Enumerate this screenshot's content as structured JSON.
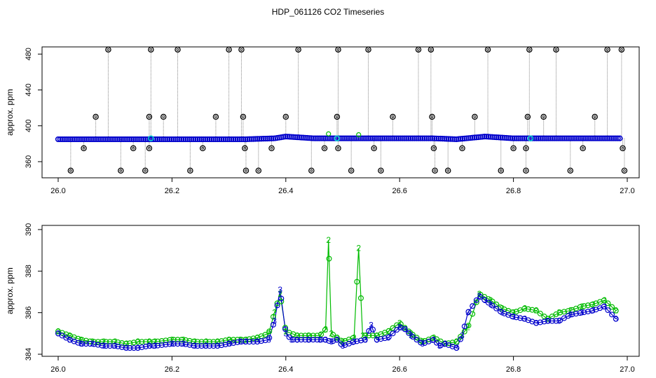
{
  "title": "HDP_061126  CO2 Timeseries",
  "colors": {
    "raw_points": "#000000",
    "raw_lines": "#888888",
    "smooth": "#0000cc",
    "cyan": "#00cccc",
    "green": "#00bb00"
  },
  "chart_data": [
    {
      "type": "scatter",
      "title": "",
      "xlabel": "",
      "ylabel": "approx. ppm",
      "xlim": [
        26.0,
        27.0
      ],
      "ylim": [
        342,
        488
      ],
      "x_ticks": [
        "26.0",
        "26.2",
        "26.4",
        "26.6",
        "26.8",
        "27.0"
      ],
      "y_ticks": [
        "360",
        "400",
        "440",
        "480"
      ],
      "baseline": {
        "x": [
          26.0,
          26.33,
          26.38,
          26.4,
          26.45,
          26.6,
          26.66,
          26.7,
          26.75,
          26.8,
          26.85,
          26.99
        ],
        "y": [
          385,
          385,
          386,
          388,
          386,
          386,
          386,
          385,
          388,
          386,
          386,
          386
        ]
      },
      "outliers": [
        {
          "x": 26.022,
          "y": 350
        },
        {
          "x": 26.045,
          "y": 375
        },
        {
          "x": 26.066,
          "y": 410
        },
        {
          "x": 26.088,
          "y": 485
        },
        {
          "x": 26.11,
          "y": 350
        },
        {
          "x": 26.132,
          "y": 375
        },
        {
          "x": 26.153,
          "y": 350
        },
        {
          "x": 26.16,
          "y": 410
        },
        {
          "x": 26.16,
          "y": 375
        },
        {
          "x": 26.163,
          "y": 485
        },
        {
          "x": 26.185,
          "y": 410
        },
        {
          "x": 26.21,
          "y": 485
        },
        {
          "x": 26.232,
          "y": 350
        },
        {
          "x": 26.254,
          "y": 375
        },
        {
          "x": 26.277,
          "y": 410
        },
        {
          "x": 26.3,
          "y": 485
        },
        {
          "x": 26.322,
          "y": 485
        },
        {
          "x": 26.325,
          "y": 410
        },
        {
          "x": 26.328,
          "y": 375
        },
        {
          "x": 26.33,
          "y": 350
        },
        {
          "x": 26.352,
          "y": 350
        },
        {
          "x": 26.375,
          "y": 375
        },
        {
          "x": 26.4,
          "y": 410
        },
        {
          "x": 26.422,
          "y": 485
        },
        {
          "x": 26.445,
          "y": 350
        },
        {
          "x": 26.468,
          "y": 375
        },
        {
          "x": 26.49,
          "y": 410
        },
        {
          "x": 26.492,
          "y": 485
        },
        {
          "x": 26.492,
          "y": 375
        },
        {
          "x": 26.515,
          "y": 350
        },
        {
          "x": 26.545,
          "y": 485
        },
        {
          "x": 26.555,
          "y": 375
        },
        {
          "x": 26.567,
          "y": 350
        },
        {
          "x": 26.588,
          "y": 410
        },
        {
          "x": 26.633,
          "y": 485
        },
        {
          "x": 26.655,
          "y": 485
        },
        {
          "x": 26.657,
          "y": 410
        },
        {
          "x": 26.66,
          "y": 375
        },
        {
          "x": 26.662,
          "y": 350
        },
        {
          "x": 26.685,
          "y": 350
        },
        {
          "x": 26.71,
          "y": 375
        },
        {
          "x": 26.732,
          "y": 410
        },
        {
          "x": 26.755,
          "y": 485
        },
        {
          "x": 26.778,
          "y": 350
        },
        {
          "x": 26.8,
          "y": 375
        },
        {
          "x": 26.822,
          "y": 375
        },
        {
          "x": 26.822,
          "y": 350
        },
        {
          "x": 26.825,
          "y": 410
        },
        {
          "x": 26.828,
          "y": 485
        },
        {
          "x": 26.853,
          "y": 410
        },
        {
          "x": 26.875,
          "y": 485
        },
        {
          "x": 26.9,
          "y": 350
        },
        {
          "x": 26.922,
          "y": 375
        },
        {
          "x": 26.943,
          "y": 410
        },
        {
          "x": 26.965,
          "y": 485
        },
        {
          "x": 26.99,
          "y": 485
        },
        {
          "x": 26.992,
          "y": 375
        },
        {
          "x": 26.995,
          "y": 350
        }
      ],
      "cyan_points": [
        {
          "x": 26.163,
          "y": 386
        },
        {
          "x": 26.49,
          "y": 386
        },
        {
          "x": 26.83,
          "y": 386
        }
      ],
      "green_points": [
        {
          "x": 26.475,
          "y": 391
        },
        {
          "x": 26.528,
          "y": 390
        }
      ]
    },
    {
      "type": "line",
      "title": "",
      "xlabel": "",
      "ylabel": "approx. ppm",
      "xlim": [
        26.0,
        27.0
      ],
      "ylim": [
        383.9,
        390.2
      ],
      "x_ticks": [
        "26.0",
        "26.2",
        "26.4",
        "26.6",
        "26.8",
        "27.0"
      ],
      "y_ticks": [
        "384",
        "386",
        "388",
        "390"
      ],
      "series": [
        {
          "label": "3",
          "x": [
            26.0,
            26.02,
            26.04,
            26.06,
            26.08,
            26.1,
            26.12,
            26.14,
            26.16,
            26.17,
            26.2,
            26.22,
            26.24,
            26.26,
            26.28,
            26.3,
            26.32,
            26.33,
            26.35,
            26.37,
            26.38,
            26.39,
            26.4,
            26.41,
            26.42,
            26.44,
            26.46,
            26.47,
            26.48,
            26.49,
            26.5,
            26.52,
            26.54,
            26.55,
            26.56,
            26.58,
            26.6,
            26.61,
            26.62,
            26.64,
            26.66,
            26.67,
            26.68,
            26.7,
            26.71,
            26.72,
            26.74,
            26.75,
            26.76,
            26.78,
            26.8,
            26.82,
            26.84,
            26.86,
            26.88,
            26.9,
            26.92,
            26.94,
            26.96,
            26.98
          ],
          "y": [
            385.0,
            384.7,
            384.5,
            384.5,
            384.4,
            384.4,
            384.3,
            384.3,
            384.4,
            384.4,
            384.5,
            384.5,
            384.4,
            384.4,
            384.4,
            384.5,
            384.6,
            384.6,
            384.6,
            384.7,
            385.6,
            387.1,
            385.0,
            384.7,
            384.7,
            384.7,
            384.7,
            384.7,
            384.6,
            384.7,
            384.4,
            384.6,
            384.7,
            385.4,
            384.7,
            384.8,
            385.3,
            385.2,
            384.9,
            384.5,
            384.7,
            384.4,
            384.5,
            384.3,
            384.9,
            386.0,
            386.8,
            386.6,
            386.4,
            386.0,
            385.8,
            385.7,
            385.5,
            385.6,
            385.6,
            385.9,
            386.0,
            386.1,
            386.3,
            385.7
          ]
        },
        {
          "label": "2",
          "x": [
            26.0,
            26.02,
            26.04,
            26.06,
            26.08,
            26.1,
            26.12,
            26.14,
            26.16,
            26.17,
            26.2,
            26.22,
            26.24,
            26.26,
            26.28,
            26.3,
            26.32,
            26.33,
            26.35,
            26.37,
            26.38,
            26.39,
            26.4,
            26.42,
            26.44,
            26.46,
            26.47,
            26.475,
            26.48,
            26.49,
            26.5,
            26.52,
            26.528,
            26.535,
            26.54,
            26.56,
            26.58,
            26.6,
            26.62,
            26.64,
            26.66,
            26.68,
            26.7,
            26.72,
            26.74,
            26.76,
            26.78,
            26.8,
            26.82,
            26.84,
            26.86,
            26.88,
            26.9,
            26.92,
            26.94,
            26.96,
            26.98
          ],
          "y": [
            385.1,
            384.9,
            384.7,
            384.6,
            384.6,
            384.6,
            384.5,
            384.6,
            384.6,
            384.6,
            384.7,
            384.7,
            384.6,
            384.6,
            384.6,
            384.7,
            384.7,
            384.7,
            384.8,
            385.0,
            386.0,
            386.9,
            385.1,
            384.9,
            384.9,
            384.9,
            385.2,
            389.5,
            385.0,
            384.8,
            384.6,
            384.8,
            389.1,
            384.9,
            384.9,
            384.9,
            385.1,
            385.5,
            385.0,
            384.6,
            384.8,
            384.5,
            384.6,
            385.3,
            386.9,
            386.6,
            386.2,
            386.0,
            386.2,
            386.1,
            385.7,
            386.0,
            386.1,
            386.3,
            386.4,
            386.6,
            386.1
          ]
        }
      ]
    }
  ]
}
